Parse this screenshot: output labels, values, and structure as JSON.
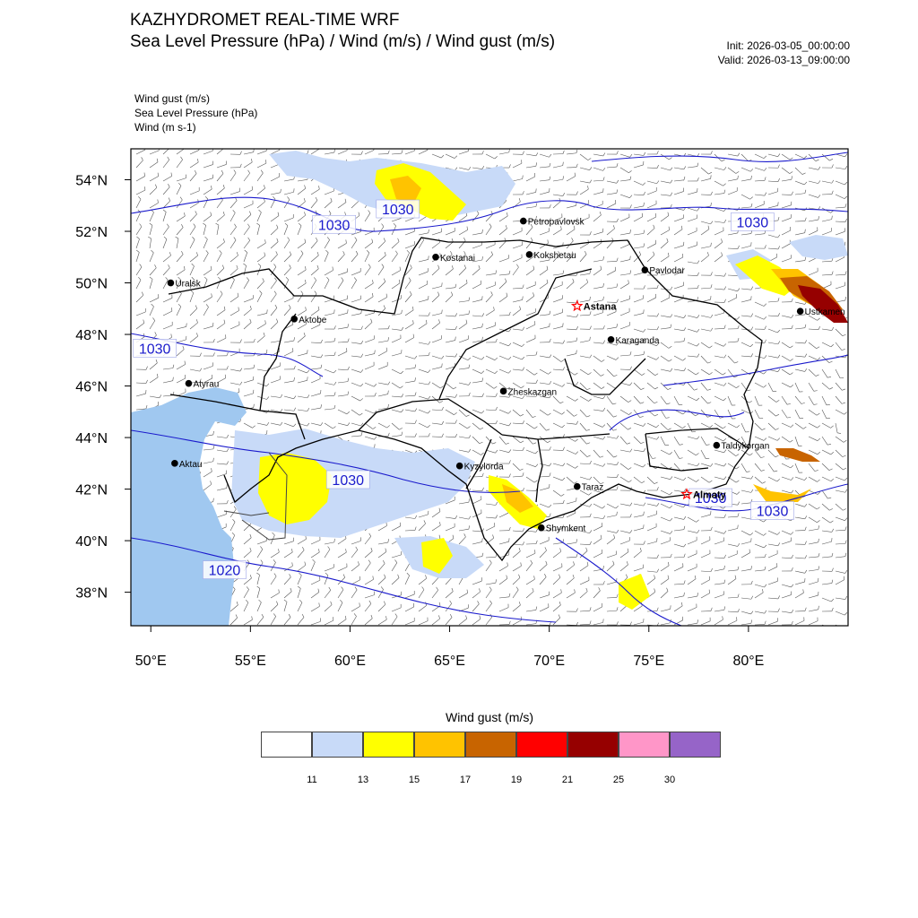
{
  "header": {
    "title": "KAZHYDROMET REAL-TIME WRF",
    "subtitle": "Sea Level Pressure  (hPa) / Wind  (m/s) / Wind gust  (m/s)",
    "init": "Init: 2026-03-05_00:00:00",
    "valid": "Valid: 2026-03-13_09:00:00"
  },
  "fields": [
    "Wind gust   (m/s)",
    "Sea Level Pressure   (hPa)",
    "Wind   (m s-1)"
  ],
  "axes": {
    "lat_ticks": [
      "54°N",
      "52°N",
      "50°N",
      "48°N",
      "46°N",
      "44°N",
      "42°N",
      "40°N",
      "38°N"
    ],
    "lon_ticks": [
      "50°E",
      "55°E",
      "60°E",
      "65°E",
      "70°E",
      "75°E",
      "80°E"
    ],
    "lat_values": [
      54,
      52,
      50,
      48,
      46,
      44,
      42,
      40,
      38
    ],
    "lon_values": [
      50,
      55,
      60,
      65,
      70,
      75,
      80
    ],
    "lon_range": [
      49,
      85
    ],
    "lat_range": [
      36.7,
      55.2
    ]
  },
  "cities": [
    {
      "name": "Petropavlovsk",
      "lon": 68.7,
      "lat": 52.4,
      "capital": false
    },
    {
      "name": "Kostanai",
      "lon": 64.3,
      "lat": 51.0,
      "capital": false
    },
    {
      "name": "Kokshetau",
      "lon": 69.0,
      "lat": 51.1,
      "capital": false
    },
    {
      "name": "Pavlodar",
      "lon": 74.8,
      "lat": 50.5,
      "capital": false
    },
    {
      "name": "Uralsk",
      "lon": 51.0,
      "lat": 50.0,
      "capital": false
    },
    {
      "name": "Aktobe",
      "lon": 57.2,
      "lat": 48.6,
      "capital": false
    },
    {
      "name": "Astana",
      "lon": 71.4,
      "lat": 49.1,
      "capital": true
    },
    {
      "name": "Ustkamen",
      "lon": 82.6,
      "lat": 48.9,
      "capital": false
    },
    {
      "name": "Karaganda",
      "lon": 73.1,
      "lat": 47.8,
      "capital": false
    },
    {
      "name": "Atyrau",
      "lon": 51.9,
      "lat": 46.1,
      "capital": false
    },
    {
      "name": "Zheskazgan",
      "lon": 67.7,
      "lat": 45.8,
      "capital": false
    },
    {
      "name": "Taldykorgan",
      "lon": 78.4,
      "lat": 43.7,
      "capital": false
    },
    {
      "name": "Aktau",
      "lon": 51.2,
      "lat": 43.0,
      "capital": false
    },
    {
      "name": "Kyzylorda",
      "lon": 65.5,
      "lat": 42.9,
      "capital": false
    },
    {
      "name": "Almaty",
      "lon": 76.9,
      "lat": 41.8,
      "capital": true
    },
    {
      "name": "Taraz",
      "lon": 71.4,
      "lat": 42.1,
      "capital": false
    },
    {
      "name": "Shymkent",
      "lon": 69.6,
      "lat": 40.5,
      "capital": false
    }
  ],
  "isobar_labels": [
    {
      "text": "1030",
      "lon": 62.4,
      "lat": 52.8
    },
    {
      "text": "1030",
      "lon": 59.2,
      "lat": 52.2
    },
    {
      "text": "1030",
      "lon": 80.2,
      "lat": 52.3
    },
    {
      "text": "1030",
      "lon": 50.2,
      "lat": 47.4
    },
    {
      "text": "1030",
      "lon": 59.9,
      "lat": 42.3
    },
    {
      "text": "1030",
      "lon": 78.1,
      "lat": 41.6
    },
    {
      "text": "1030",
      "lon": 81.2,
      "lat": 41.1
    },
    {
      "text": "1020",
      "lon": 53.7,
      "lat": 38.8
    }
  ],
  "colorbar": {
    "title": "Wind gust (m/s)",
    "colors": [
      "#ffffff",
      "#c8daf8",
      "#ffff00",
      "#ffc300",
      "#c86400",
      "#ff0000",
      "#960000",
      "#ff96c8",
      "#9664c8"
    ],
    "labels": [
      "11",
      "13",
      "15",
      "17",
      "19",
      "21",
      "25",
      "30"
    ]
  },
  "colors": {
    "isobar": "#1a1acc",
    "border": "#000000",
    "water": "#a0c8f0",
    "wind_barb": "#555555"
  }
}
